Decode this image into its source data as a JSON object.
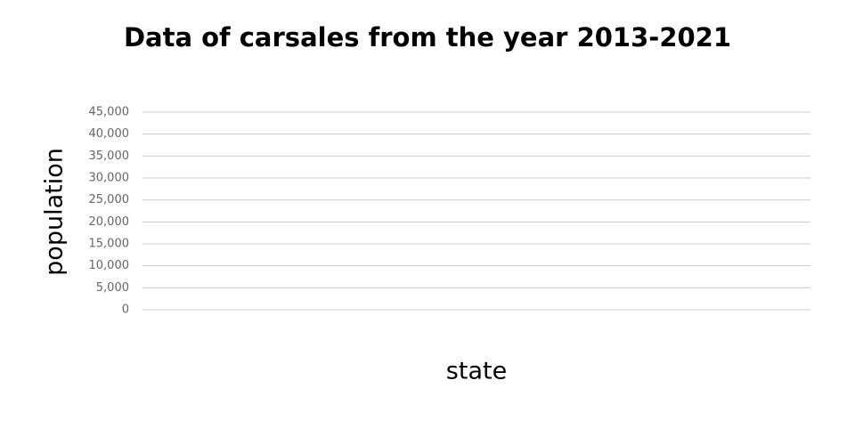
{
  "chart_data": {
    "type": "bar",
    "title": "Data of carsales from the year 2013-2021",
    "x_label": "state",
    "y_label": "population",
    "categories": [],
    "values": [],
    "ylim": [
      0,
      45000
    ],
    "yticks": [
      0,
      {
        "value": 5000,
        "label": "5,000"
      },
      {
        "value": 10000,
        "label": "10,000"
      },
      {
        "value": 15000,
        "label": "15,000"
      },
      {
        "value": 20000,
        "label": "20,000"
      },
      {
        "value": 25000,
        "label": "25,000"
      },
      {
        "value": 30000,
        "label": "30,000"
      },
      {
        "value": 35000,
        "label": "35,000"
      },
      {
        "value": 40000,
        "label": "40,000"
      },
      {
        "value": 45000,
        "label": "45,000"
      }
    ],
    "grid": true
  }
}
